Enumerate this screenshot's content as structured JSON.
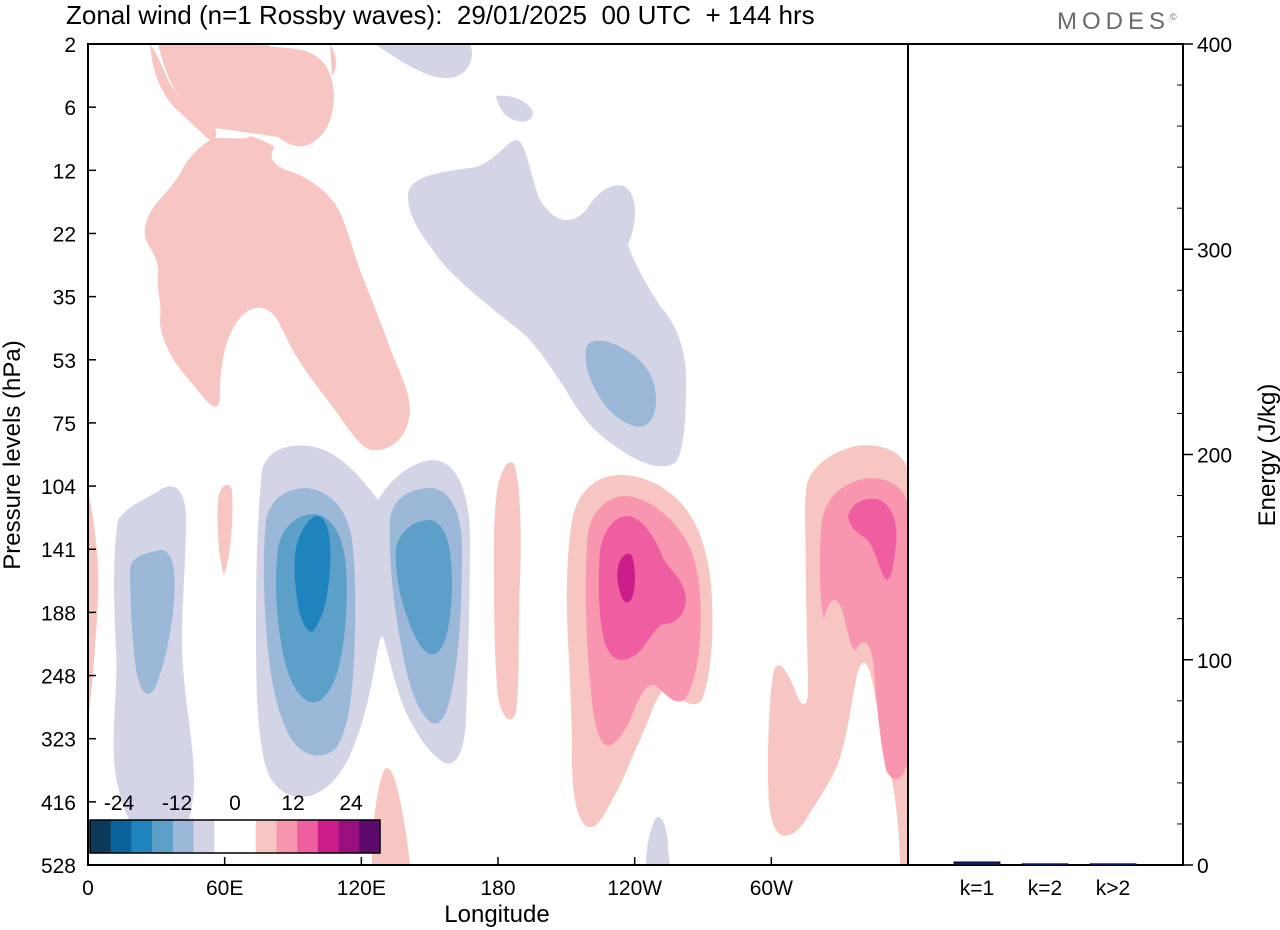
{
  "title": "Zonal wind (n=1 Rossby waves):  29/01/2025  00 UTC  + 144 hrs",
  "logo": "MODES",
  "logo_mark": "©",
  "chart_data": [
    {
      "type": "heatmap",
      "title": "Zonal wind (n=1 Rossby waves):  29/01/2025  00 UTC  + 144 hrs",
      "xlabel": "Longitude",
      "ylabel": "Pressure levels (hPa)",
      "x_ticks": [
        "0",
        "60E",
        "120E",
        "180",
        "120W",
        "60W"
      ],
      "x_tick_values": [
        0,
        60,
        120,
        180,
        240,
        300
      ],
      "xlim": [
        0,
        360
      ],
      "y_ticks": [
        "2",
        "6",
        "12",
        "22",
        "35",
        "53",
        "75",
        "104",
        "141",
        "188",
        "248",
        "323",
        "416",
        "528"
      ],
      "y_tick_values": [
        2,
        6,
        12,
        22,
        35,
        53,
        75,
        104,
        141,
        188,
        248,
        323,
        416,
        528
      ],
      "ylim": [
        528,
        2
      ],
      "colorbar": {
        "tick_labels": [
          "-24",
          "-12",
          "0",
          "12",
          "24"
        ],
        "tick_values": [
          -24,
          -12,
          0,
          12,
          24
        ],
        "colors": [
          "#0d3a5a",
          "#0b639c",
          "#1f83be",
          "#5ca0ca",
          "#9cb8d8",
          "#d3d5e7",
          "#ffffff",
          "#ffffff",
          "#f8c6c2",
          "#f996af",
          "#ef5ea1",
          "#cc1e8b",
          "#9a0f7e",
          "#5c0a6c"
        ]
      },
      "features": [
        {
          "lon": 42,
          "p": 3,
          "value": 4
        },
        {
          "lon": 55,
          "p": 20,
          "value": 4
        },
        {
          "lon": 65,
          "p": 45,
          "value": 4
        },
        {
          "lon": 130,
          "p": 3,
          "value": -4
        },
        {
          "lon": 190,
          "p": 5,
          "value": -4
        },
        {
          "lon": 200,
          "p": 25,
          "value": -4
        },
        {
          "lon": 225,
          "p": 60,
          "value": -8
        },
        {
          "lon": 2,
          "p": 190,
          "value": 4
        },
        {
          "lon": 30,
          "p": 180,
          "value": -8
        },
        {
          "lon": 60,
          "p": 140,
          "value": 4
        },
        {
          "lon": 97,
          "p": 160,
          "value": -20
        },
        {
          "lon": 150,
          "p": 170,
          "value": -16
        },
        {
          "lon": 180,
          "p": 190,
          "value": 4
        },
        {
          "lon": 132,
          "p": 500,
          "value": 4
        },
        {
          "lon": 237,
          "p": 160,
          "value": 20
        },
        {
          "lon": 343,
          "p": 130,
          "value": 16
        },
        {
          "lon": 320,
          "p": 280,
          "value": 4
        },
        {
          "lon": 250,
          "p": 500,
          "value": -4
        }
      ]
    },
    {
      "type": "bar",
      "categories": [
        "k=1",
        "k=2",
        "k>2"
      ],
      "values": [
        1.5,
        0.6,
        0.6
      ],
      "ylabel": "Energy (J/kg)",
      "ylim": [
        0,
        400
      ],
      "y_ticks": [
        0,
        100,
        200,
        300,
        400
      ],
      "colors": [
        "#1a1a7a",
        "#1a1a7a",
        "#1a1a7a"
      ]
    }
  ]
}
